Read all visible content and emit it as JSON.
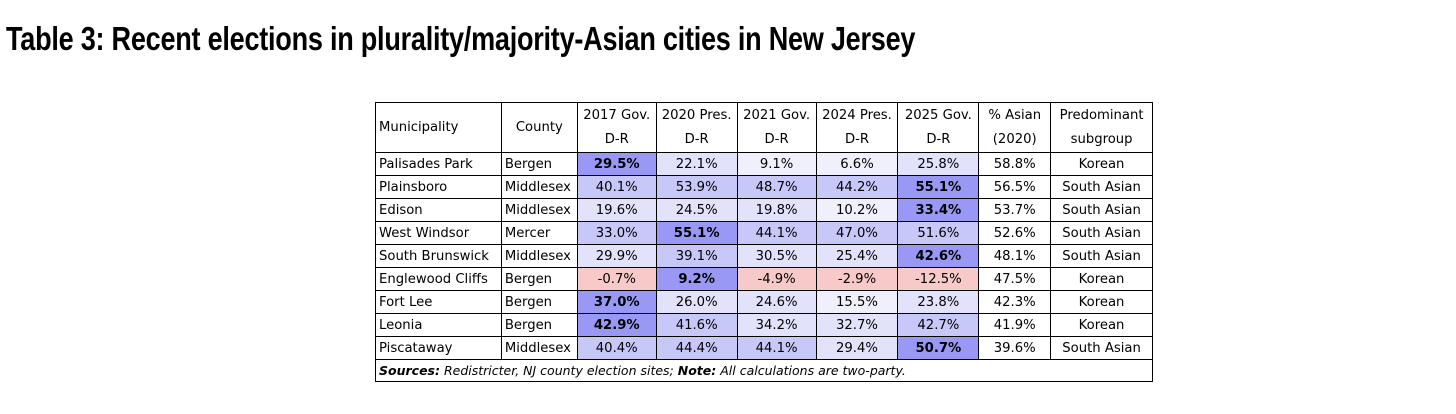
{
  "title": "Table 3: Recent elections in plurality/majority-Asian cities in New Jersey",
  "colors": {
    "strong_dem": "#9999f5",
    "mid_dem": "#c7c7f8",
    "light_dem": "#e2e2fb",
    "faint_dem": "#f0f0fd",
    "rep": "#f7c9c9"
  },
  "headers": [
    {
      "line1": "Municipality",
      "line2": ""
    },
    {
      "line1": "County",
      "line2": ""
    },
    {
      "line1": "2017 Gov.",
      "line2": "D-R"
    },
    {
      "line1": "2020 Pres.",
      "line2": "D-R"
    },
    {
      "line1": "2021 Gov.",
      "line2": "D-R"
    },
    {
      "line1": "2024 Pres.",
      "line2": "D-R"
    },
    {
      "line1": "2025 Gov.",
      "line2": "D-R"
    },
    {
      "line1": "% Asian",
      "line2": "(2020)"
    },
    {
      "line1": "Predominant",
      "line2": "subgroup"
    }
  ],
  "rows": [
    {
      "municipality": "Palisades Park",
      "county": "Bergen",
      "cells": [
        "29.5%",
        "22.1%",
        "9.1%",
        "6.6%",
        "25.8%"
      ],
      "shade": [
        "strong",
        "light",
        "faint",
        "faint",
        "light"
      ],
      "bold": [
        0
      ],
      "asian": "58.8%",
      "subgroup": "Korean"
    },
    {
      "municipality": "Plainsboro",
      "county": "Middlesex",
      "cells": [
        "40.1%",
        "53.9%",
        "48.7%",
        "44.2%",
        "55.1%"
      ],
      "shade": [
        "mid",
        "mid",
        "mid",
        "mid",
        "strong"
      ],
      "bold": [
        4
      ],
      "asian": "56.5%",
      "subgroup": "South Asian"
    },
    {
      "municipality": "Edison",
      "county": "Middlesex",
      "cells": [
        "19.6%",
        "24.5%",
        "19.8%",
        "10.2%",
        "33.4%"
      ],
      "shade": [
        "light",
        "light",
        "light",
        "faint",
        "strong"
      ],
      "bold": [
        4
      ],
      "asian": "53.7%",
      "subgroup": "South Asian"
    },
    {
      "municipality": "West Windsor",
      "county": "Mercer",
      "cells": [
        "33.0%",
        "55.1%",
        "44.1%",
        "47.0%",
        "51.6%"
      ],
      "shade": [
        "mid",
        "strong",
        "mid",
        "mid",
        "mid"
      ],
      "bold": [
        1
      ],
      "asian": "52.6%",
      "subgroup": "South Asian"
    },
    {
      "municipality": "South Brunswick",
      "county": "Middlesex",
      "cells": [
        "29.9%",
        "39.1%",
        "30.5%",
        "25.4%",
        "42.6%"
      ],
      "shade": [
        "light",
        "mid",
        "light",
        "light",
        "strong"
      ],
      "bold": [
        4
      ],
      "asian": "48.1%",
      "subgroup": "South Asian"
    },
    {
      "municipality": "Englewood Cliffs",
      "county": "Bergen",
      "cells": [
        "-0.7%",
        "9.2%",
        "-4.9%",
        "-2.9%",
        "-12.5%"
      ],
      "shade": [
        "rep",
        "strong",
        "rep",
        "rep",
        "rep"
      ],
      "bold": [
        1
      ],
      "asian": "47.5%",
      "subgroup": "Korean"
    },
    {
      "municipality": "Fort Lee",
      "county": "Bergen",
      "cells": [
        "37.0%",
        "26.0%",
        "24.6%",
        "15.5%",
        "23.8%"
      ],
      "shade": [
        "strong",
        "light",
        "light",
        "faint",
        "light"
      ],
      "bold": [
        0
      ],
      "asian": "42.3%",
      "subgroup": "Korean"
    },
    {
      "municipality": "Leonia",
      "county": "Bergen",
      "cells": [
        "42.9%",
        "41.6%",
        "34.2%",
        "32.7%",
        "42.7%"
      ],
      "shade": [
        "strong",
        "mid",
        "light",
        "light",
        "mid"
      ],
      "bold": [
        0
      ],
      "asian": "41.9%",
      "subgroup": "Korean"
    },
    {
      "municipality": "Piscataway",
      "county": "Middlesex",
      "cells": [
        "40.4%",
        "44.4%",
        "44.1%",
        "29.4%",
        "50.7%"
      ],
      "shade": [
        "mid",
        "mid",
        "mid",
        "light",
        "strong"
      ],
      "bold": [
        4
      ],
      "asian": "39.6%",
      "subgroup": "South Asian"
    }
  ],
  "footer": {
    "sources_label": "Sources:",
    "sources_text": " Redistricter, NJ county election sites; ",
    "note_label": "Note:",
    "note_text": " All calculations are two-party."
  }
}
